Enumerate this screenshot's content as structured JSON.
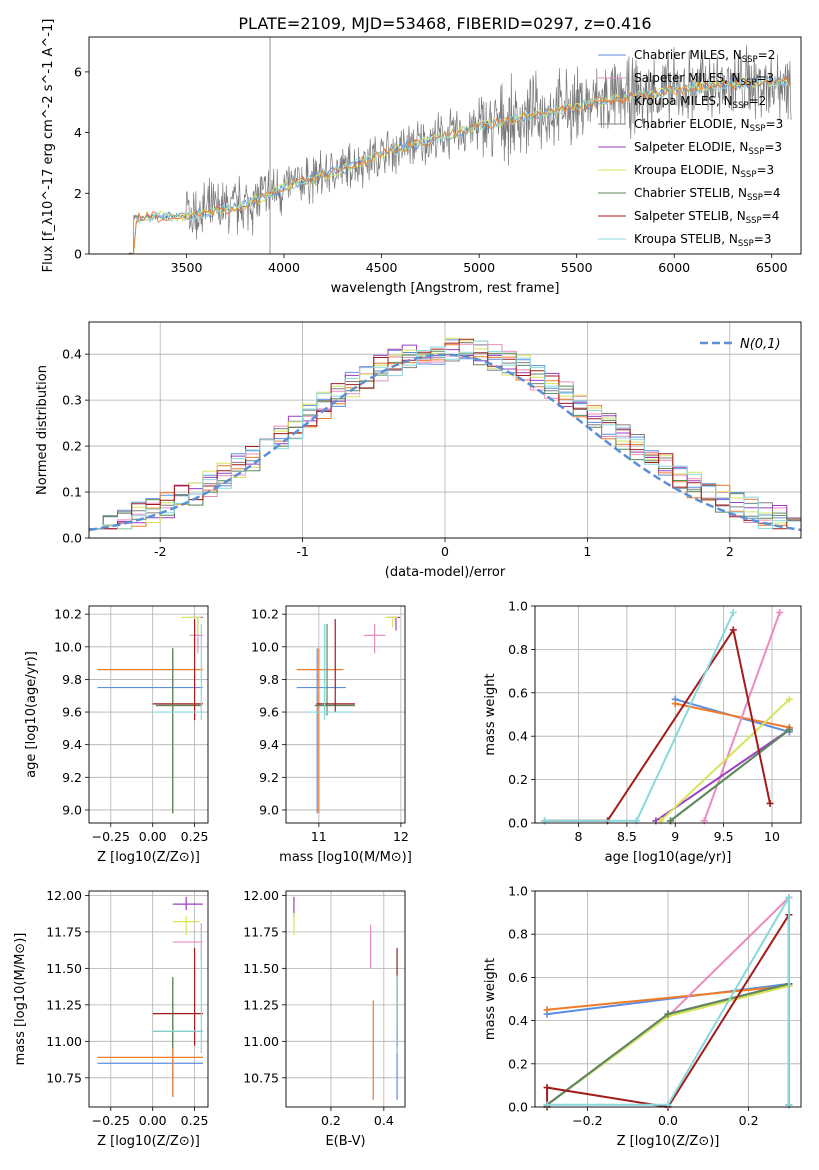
{
  "figure_title": "PLATE=2109, MJD=53468, FIBERID=0297, z=0.416",
  "colors": {
    "Chabrier MILES": "#5b8fe0",
    "Salpeter MILES": "#e98cbf",
    "Kroupa MILES": "#ef7b2a",
    "Chabrier ELODIE": "#808080",
    "Salpeter ELODIE": "#9b3fc0",
    "Kroupa ELODIE": "#d8e35a",
    "Chabrier STELIB": "#5d8a5d",
    "Salpeter STELIB": "#a31b1b",
    "Kroupa STELIB": "#8ad8de",
    "normal": "#5b8fd6"
  },
  "chart_data": [
    {
      "id": "spectrum",
      "type": "line",
      "title": "PLATE=2109, MJD=53468, FIBERID=0297, z=0.416",
      "xlabel": "wavelength [Angstrom, rest frame]",
      "ylabel": "Flux [f_λ10^-17 erg cm^-2 s^-1 A^-1]",
      "xlim": [
        3000,
        6650
      ],
      "ylim": [
        0,
        7.15
      ],
      "xticks": [
        3500,
        4000,
        4500,
        5000,
        5500,
        6000,
        6500
      ],
      "yticks": [
        0,
        2,
        4,
        6
      ],
      "grid": false,
      "legend_position": "upper-right",
      "data_anchor_x": [
        3200,
        3230,
        3500,
        3800,
        4000,
        4300,
        4600,
        5000,
        5300,
        5600,
        6000,
        6300,
        6600
      ],
      "data_anchor_y": [
        0,
        1.2,
        1.25,
        1.6,
        2.2,
        2.8,
        3.5,
        4.2,
        4.6,
        5.0,
        5.4,
        5.6,
        5.7
      ],
      "series": [
        {
          "name": "Chabrier MILES",
          "nssp": "2"
        },
        {
          "name": "Salpeter MILES",
          "nssp": "3"
        },
        {
          "name": "Kroupa MILES",
          "nssp": "2"
        },
        {
          "name": "Chabrier ELODIE",
          "nssp": "3"
        },
        {
          "name": "Salpeter ELODIE",
          "nssp": "3"
        },
        {
          "name": "Kroupa ELODIE",
          "nssp": "3"
        },
        {
          "name": "Chabrier STELIB",
          "nssp": "4"
        },
        {
          "name": "Salpeter STELIB",
          "nssp": "4"
        },
        {
          "name": "Kroupa STELIB",
          "nssp": "3"
        }
      ]
    },
    {
      "id": "residuals",
      "type": "line",
      "xlabel": "(data-model)/error",
      "ylabel": "Normed distribution",
      "xlim": [
        -2.5,
        2.5
      ],
      "ylim": [
        0,
        0.47
      ],
      "xticks": [
        -2,
        -1,
        0,
        1,
        2
      ],
      "yticks": [
        0.0,
        0.1,
        0.2,
        0.3,
        0.4
      ],
      "grid": true,
      "legend_position": "upper-right",
      "legend_label": "N(0,1)",
      "bin_width": 0.1
    },
    {
      "id": "age_vs_Z",
      "type": "scatter",
      "xlabel": "Z [log10(Z/Z⊙)]",
      "ylabel": "age  [log10(age/yr)]",
      "xlim": [
        -0.38,
        0.33
      ],
      "ylim": [
        8.92,
        10.25
      ],
      "xticks": [
        -0.25,
        0.0,
        0.25
      ],
      "xtick_labels": [
        "−0.25",
        "0.00",
        "0.25"
      ],
      "yticks": [
        9.0,
        9.2,
        9.4,
        9.6,
        9.8,
        10.0,
        10.2
      ],
      "grid": true,
      "points": [
        {
          "s": "Chabrier MILES",
          "x": 0.12,
          "y": 9.75,
          "xe": [
            -0.33,
            0.3
          ],
          "ye": [
            8.98,
            9.99
          ]
        },
        {
          "s": "Kroupa MILES",
          "x": 0.12,
          "y": 9.86,
          "xe": [
            -0.33,
            0.3
          ],
          "ye": [
            8.98,
            9.99
          ]
        },
        {
          "s": "Salpeter MILES",
          "x": 0.27,
          "y": 10.07,
          "xe": [
            0.22,
            0.3
          ],
          "ye": [
            9.96,
            10.14
          ]
        },
        {
          "s": "Chabrier ELODIE",
          "x": 0.12,
          "y": 9.64,
          "xe": [
            0.02,
            0.29
          ],
          "ye": [
            8.98,
            9.99
          ]
        },
        {
          "s": "Salpeter ELODIE",
          "x": 0.27,
          "y": 10.18,
          "xe": [
            0.2,
            0.3
          ],
          "ye": [
            10.13,
            10.18
          ]
        },
        {
          "s": "Kroupa ELODIE",
          "x": 0.27,
          "y": 10.18,
          "xe": [
            0.17,
            0.29
          ],
          "ye": [
            10.08,
            10.18
          ]
        },
        {
          "s": "Chabrier STELIB",
          "x": 0.12,
          "y": 9.64,
          "xe": [
            0.02,
            0.29
          ],
          "ye": [
            8.98,
            9.99
          ]
        },
        {
          "s": "Salpeter STELIB",
          "x": 0.25,
          "y": 9.65,
          "xe": [
            0.0,
            0.3
          ],
          "ye": [
            9.55,
            10.17
          ]
        },
        {
          "s": "Kroupa STELIB",
          "x": 0.29,
          "y": 9.6,
          "xe": [
            0.0,
            0.3
          ],
          "ye": [
            9.55,
            10.14
          ]
        }
      ]
    },
    {
      "id": "age_vs_mass",
      "type": "scatter",
      "xlabel": "mass [log10(M/M⊙)]",
      "xlim": [
        10.6,
        12.05
      ],
      "ylim": [
        8.92,
        10.25
      ],
      "xticks": [
        11,
        12
      ],
      "yticks": [
        9.0,
        9.2,
        9.4,
        9.6,
        9.8,
        10.0,
        10.2
      ],
      "grid": true,
      "points": [
        {
          "s": "Chabrier MILES",
          "x": 10.98,
          "y": 9.75,
          "xe": [
            10.73,
            11.33
          ],
          "ye": [
            8.98,
            9.99
          ]
        },
        {
          "s": "Kroupa MILES",
          "x": 11.0,
          "y": 9.86,
          "xe": [
            10.73,
            11.3
          ],
          "ye": [
            8.98,
            9.99
          ]
        },
        {
          "s": "Salpeter MILES",
          "x": 11.68,
          "y": 10.07,
          "xe": [
            11.55,
            11.81
          ],
          "ye": [
            9.96,
            10.14
          ]
        },
        {
          "s": "Chabrier ELODIE",
          "x": 11.07,
          "y": 9.64,
          "xe": [
            10.95,
            11.44
          ],
          "ye": [
            9.58,
            10.14
          ]
        },
        {
          "s": "Salpeter ELODIE",
          "x": 11.94,
          "y": 10.18,
          "xe": [
            11.85,
            11.99
          ],
          "ye": [
            10.1,
            10.18
          ]
        },
        {
          "s": "Kroupa ELODIE",
          "x": 11.9,
          "y": 10.18,
          "xe": [
            11.81,
            11.96
          ],
          "ye": [
            10.12,
            10.18
          ]
        },
        {
          "s": "Chabrier STELIB",
          "x": 11.1,
          "y": 9.64,
          "xe": [
            10.95,
            11.44
          ],
          "ye": [
            9.58,
            10.14
          ]
        },
        {
          "s": "Salpeter STELIB",
          "x": 11.2,
          "y": 9.65,
          "xe": [
            10.97,
            11.44
          ],
          "ye": [
            9.6,
            10.17
          ]
        },
        {
          "s": "Kroupa STELIB",
          "x": 11.07,
          "y": 9.6,
          "xe": [
            10.85,
            11.4
          ],
          "ye": [
            9.55,
            10.14
          ]
        }
      ]
    },
    {
      "id": "weight_vs_age",
      "type": "line",
      "xlabel": "age  [log10(age/yr)]",
      "ylabel": "mass weight",
      "xlim": [
        7.55,
        10.3
      ],
      "ylim": [
        0,
        1.0
      ],
      "xticks": [
        8.0,
        8.5,
        9.0,
        9.5,
        10.0
      ],
      "yticks": [
        0.0,
        0.2,
        0.4,
        0.6,
        0.8,
        1.0
      ],
      "grid": true,
      "series": [
        {
          "s": "Chabrier MILES",
          "x": [
            9.0,
            10.18
          ],
          "y": [
            0.57,
            0.42
          ]
        },
        {
          "s": "Kroupa MILES",
          "x": [
            9.0,
            10.18
          ],
          "y": [
            0.55,
            0.44
          ]
        },
        {
          "s": "Salpeter MILES",
          "x": [
            9.3,
            10.08
          ],
          "y": [
            0.01,
            0.97
          ]
        },
        {
          "s": "Chabrier ELODIE",
          "x": [
            8.95,
            10.18
          ],
          "y": [
            0.01,
            0.43
          ]
        },
        {
          "s": "Salpeter ELODIE",
          "x": [
            8.8,
            10.18
          ],
          "y": [
            0.01,
            0.43
          ]
        },
        {
          "s": "Kroupa ELODIE",
          "x": [
            8.85,
            10.18
          ],
          "y": [
            0.01,
            0.57
          ]
        },
        {
          "s": "Chabrier STELIB",
          "x": [
            8.95,
            10.18
          ],
          "y": [
            0.01,
            0.43
          ]
        },
        {
          "s": "Salpeter STELIB",
          "x": [
            7.65,
            8.3,
            9.6,
            9.98
          ],
          "y": [
            0.01,
            0.01,
            0.89,
            0.09
          ]
        },
        {
          "s": "Kroupa STELIB",
          "x": [
            7.65,
            8.6,
            9.6
          ],
          "y": [
            0.01,
            0.01,
            0.97
          ]
        }
      ]
    },
    {
      "id": "mass_vs_Z",
      "type": "scatter",
      "xlabel": "Z [log10(Z/Z⊙)]",
      "ylabel": "mass [log10(M/M⊙)]",
      "xlim": [
        -0.38,
        0.33
      ],
      "ylim": [
        10.55,
        12.03
      ],
      "xticks": [
        -0.25,
        0.0,
        0.25
      ],
      "xtick_labels": [
        "−0.25",
        "0.00",
        "0.25"
      ],
      "yticks": [
        10.75,
        11.0,
        11.25,
        11.5,
        11.75,
        12.0
      ],
      "yticks_labels": [
        "10.75",
        "11.00",
        "11.25",
        "11.50",
        "11.75",
        "12.00"
      ],
      "grid": true,
      "points": [
        {
          "s": "Chabrier MILES",
          "x": 0.12,
          "y": 10.85,
          "xe": [
            -0.33,
            0.3
          ],
          "ye": [
            10.62,
            11.28
          ]
        },
        {
          "s": "Kroupa MILES",
          "x": 0.12,
          "y": 10.89,
          "xe": [
            -0.33,
            0.3
          ],
          "ye": [
            10.62,
            11.28
          ]
        },
        {
          "s": "Salpeter MILES",
          "x": 0.29,
          "y": 11.68,
          "xe": [
            0.12,
            0.3
          ],
          "ye": [
            11.55,
            11.81
          ]
        },
        {
          "s": "Chabrier ELODIE",
          "x": 0.12,
          "y": 11.07,
          "xe": [
            0.0,
            0.3
          ],
          "ye": [
            10.95,
            11.44
          ]
        },
        {
          "s": "Salpeter ELODIE",
          "x": 0.2,
          "y": 11.94,
          "xe": [
            0.12,
            0.3
          ],
          "ye": [
            11.9,
            11.99
          ]
        },
        {
          "s": "Kroupa ELODIE",
          "x": 0.2,
          "y": 11.82,
          "xe": [
            0.12,
            0.28
          ],
          "ye": [
            11.73,
            11.86
          ]
        },
        {
          "s": "Chabrier STELIB",
          "x": 0.12,
          "y": 11.07,
          "xe": [
            0.0,
            0.3
          ],
          "ye": [
            10.95,
            11.44
          ]
        },
        {
          "s": "Salpeter STELIB",
          "x": 0.25,
          "y": 11.19,
          "xe": [
            0.0,
            0.3
          ],
          "ye": [
            10.97,
            11.64
          ]
        },
        {
          "s": "Kroupa STELIB",
          "x": 0.29,
          "y": 11.07,
          "xe": [
            0.0,
            0.3
          ],
          "ye": [
            10.92,
            11.75
          ]
        }
      ]
    },
    {
      "id": "mass_vs_ebv",
      "type": "scatter",
      "xlabel": "E(B-V)",
      "xlim": [
        0.03,
        0.48
      ],
      "ylim": [
        10.55,
        12.03
      ],
      "xticks": [
        0.2,
        0.4
      ],
      "yticks": [
        10.75,
        11.0,
        11.25,
        11.5,
        11.75,
        12.0
      ],
      "yticks_labels": [
        "10.75",
        "11.00",
        "11.25",
        "11.50",
        "11.75",
        "12.00"
      ],
      "grid": true,
      "points": [
        {
          "s": "Chabrier MILES",
          "x": 0.45,
          "y": 10.85,
          "ye": [
            10.6,
            11.1
          ]
        },
        {
          "s": "Kroupa MILES",
          "x": 0.36,
          "y": 10.89,
          "ye": [
            10.6,
            11.28
          ]
        },
        {
          "s": "Salpeter MILES",
          "x": 0.35,
          "y": 11.68,
          "ye": [
            11.5,
            11.8
          ]
        },
        {
          "s": "Chabrier ELODIE",
          "x": 0.45,
          "y": 11.07,
          "ye": [
            10.95,
            11.44
          ]
        },
        {
          "s": "Salpeter ELODIE",
          "x": 0.06,
          "y": 11.94,
          "ye": [
            11.85,
            11.99
          ]
        },
        {
          "s": "Kroupa ELODIE",
          "x": 0.06,
          "y": 11.82,
          "ye": [
            11.73,
            11.88
          ]
        },
        {
          "s": "Chabrier STELIB",
          "x": 0.45,
          "y": 11.07,
          "ye": [
            10.95,
            11.44
          ]
        },
        {
          "s": "Salpeter STELIB",
          "x": 0.45,
          "y": 11.19,
          "ye": [
            10.97,
            11.64
          ]
        },
        {
          "s": "Kroupa STELIB",
          "x": 0.45,
          "y": 11.07,
          "ye": [
            10.92,
            11.45
          ]
        }
      ]
    },
    {
      "id": "weight_vs_Z",
      "type": "line",
      "xlabel": "Z [log10(Z/Z⊙)]",
      "ylabel": "mass weight",
      "xlim": [
        -0.33,
        0.33
      ],
      "ylim": [
        0,
        1.0
      ],
      "xticks": [
        -0.2,
        0.0,
        0.2
      ],
      "xtick_labels": [
        "−0.2",
        "0.0",
        "0.2"
      ],
      "yticks": [
        0.0,
        0.2,
        0.4,
        0.6,
        0.8,
        1.0
      ],
      "grid": true,
      "series": [
        {
          "s": "Chabrier MILES",
          "x": [
            -0.3,
            0.3
          ],
          "y": [
            0.43,
            0.57
          ]
        },
        {
          "s": "Kroupa MILES",
          "x": [
            -0.3,
            0.3
          ],
          "y": [
            0.45,
            0.56
          ]
        },
        {
          "s": "Salpeter MILES",
          "x": [
            -0.3,
            0.0,
            0.3,
            0.3
          ],
          "y": [
            0.01,
            0.42,
            0.97,
            0.01
          ]
        },
        {
          "s": "Chabrier ELODIE",
          "x": [
            -0.3,
            0.0,
            0.3
          ],
          "y": [
            0.01,
            0.43,
            0.57
          ]
        },
        {
          "s": "Salpeter ELODIE",
          "x": [
            -0.3,
            0.0,
            0.3
          ],
          "y": [
            0.01,
            0.43,
            0.57
          ]
        },
        {
          "s": "Kroupa ELODIE",
          "x": [
            -0.3,
            0.0,
            0.3
          ],
          "y": [
            0.01,
            0.42,
            0.56
          ]
        },
        {
          "s": "Chabrier STELIB",
          "x": [
            -0.3,
            0.0,
            0.3
          ],
          "y": [
            0.01,
            0.43,
            0.57
          ]
        },
        {
          "s": "Salpeter STELIB",
          "x": [
            -0.3,
            -0.3,
            0.0,
            0.3,
            0.3
          ],
          "y": [
            0.0,
            0.09,
            0.0,
            0.89,
            0.01
          ]
        },
        {
          "s": "Kroupa STELIB",
          "x": [
            -0.3,
            0.0,
            0.3,
            0.3
          ],
          "y": [
            0.01,
            0.01,
            0.97,
            0.01
          ]
        }
      ]
    }
  ]
}
